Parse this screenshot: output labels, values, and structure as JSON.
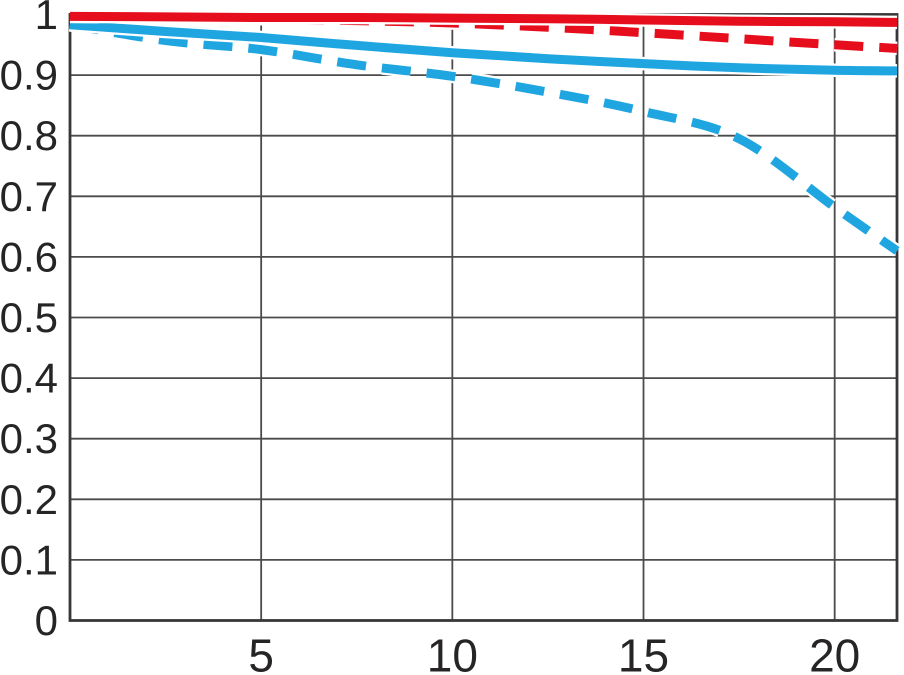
{
  "figure": {
    "background": "#ffffff",
    "title": "",
    "legend": null
  },
  "colors": {
    "red_series": "#e60d1c",
    "blue_series": "#1fa6e0",
    "gridline": "#4b4b4b",
    "plot_border": "#373737",
    "tick_label": "#262424",
    "line_casing": "#ffffff"
  },
  "chart_data": {
    "type": "line",
    "title": "",
    "xlabel": "",
    "ylabel": "",
    "xlim": [
      0,
      21.63
    ],
    "ylim": [
      0,
      1
    ],
    "grid": true,
    "legend_position": "none",
    "x_ticks": [
      {
        "value": 5,
        "label": "5"
      },
      {
        "value": 10,
        "label": "10"
      },
      {
        "value": 15,
        "label": "15"
      },
      {
        "value": 20,
        "label": "20"
      }
    ],
    "y_ticks": [
      {
        "value": 0,
        "label": "0"
      },
      {
        "value": 0.1,
        "label": "0.1"
      },
      {
        "value": 0.2,
        "label": "0.2"
      },
      {
        "value": 0.3,
        "label": "0.3"
      },
      {
        "value": 0.4,
        "label": "0.4"
      },
      {
        "value": 0.5,
        "label": "0.5"
      },
      {
        "value": 0.6,
        "label": "0.6"
      },
      {
        "value": 0.7,
        "label": "0.7"
      },
      {
        "value": 0.8,
        "label": "0.8"
      },
      {
        "value": 0.9,
        "label": "0.9"
      },
      {
        "value": 1,
        "label": "1"
      }
    ],
    "x": [
      0,
      2.5,
      5,
      7.5,
      10,
      12.5,
      15,
      17.5,
      20,
      21.63
    ],
    "series": [
      {
        "name": "blue-dashed",
        "color_key": "blue_series",
        "dash": true,
        "values": [
          0.983,
          0.957,
          0.942,
          0.917,
          0.898,
          0.872,
          0.84,
          0.795,
          0.682,
          0.61
        ]
      },
      {
        "name": "blue-solid",
        "color_key": "blue_series",
        "dash": false,
        "values": [
          0.983,
          0.972,
          0.962,
          0.949,
          0.937,
          0.927,
          0.919,
          0.912,
          0.908,
          0.907
        ]
      },
      {
        "name": "red-dashed",
        "color_key": "red_series",
        "dash": true,
        "values": [
          0.997,
          0.995,
          0.993,
          0.99,
          0.986,
          0.979,
          0.97,
          0.96,
          0.95,
          0.944
        ]
      },
      {
        "name": "red-solid",
        "color_key": "red_series",
        "dash": false,
        "values": [
          0.997,
          0.996,
          0.995,
          0.995,
          0.994,
          0.993,
          0.991,
          0.989,
          0.988,
          0.987
        ]
      }
    ]
  }
}
